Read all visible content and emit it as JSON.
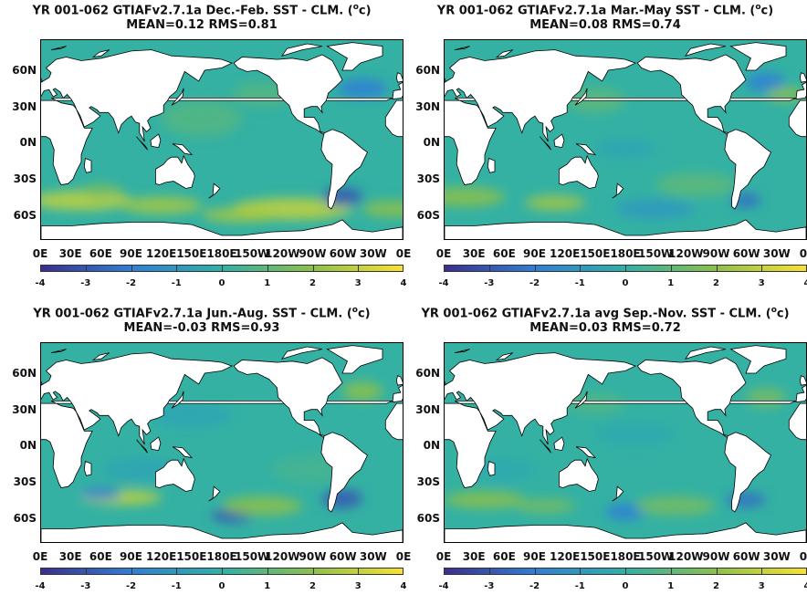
{
  "panels": [
    {
      "title_line1": "YR 001-062 GTIAFv2.7.1a  Dec.-Feb. SST - CLM. (",
      "title_unit": "o",
      "title_unit_end": "c)",
      "title_line2": "MEAN=0.12   RMS=0.81",
      "season": "djf"
    },
    {
      "title_line1": "YR 001-062 GTIAFv2.7.1a Mar.-May SST - CLM. (",
      "title_unit": "o",
      "title_unit_end": "c)",
      "title_line2": "MEAN=0.08   RMS=0.74",
      "season": "mam"
    },
    {
      "title_line1": "YR 001-062 GTIAFv2.7.1a Jun.-Aug. SST - CLM. (",
      "title_unit": "o",
      "title_unit_end": "c)",
      "title_line2": "MEAN=-0.03   RMS=0.93",
      "season": "jja"
    },
    {
      "title_line1": "YR 001-062 GTIAFv2.7.1a avg Sep.-Nov. SST - CLM. (",
      "title_unit": "o",
      "title_unit_end": "c)",
      "title_line2": "MEAN=0.03   RMS=0.72",
      "season": "son"
    }
  ],
  "lat_labels": [
    "60N",
    "30N",
    "0N",
    "30S",
    "60S"
  ],
  "lon_labels": [
    "0E",
    "30E",
    "60E",
    "90E",
    "120E",
    "150E",
    "180E",
    "150W",
    "120W",
    "90W",
    "60W",
    "30W",
    "0E"
  ],
  "colorbar_labels": [
    "-4",
    "-3",
    "-2",
    "-1",
    "0",
    "1",
    "2",
    "3",
    "4"
  ],
  "colorbar_range": [
    -4,
    4
  ],
  "colors": {
    "low": "#3b2e8f",
    "mid_low": "#2f7fd6",
    "mid": "#2fb0a8",
    "mid_high": "#8cc04a",
    "high": "#f9e12f",
    "land": "#ffffff"
  }
}
